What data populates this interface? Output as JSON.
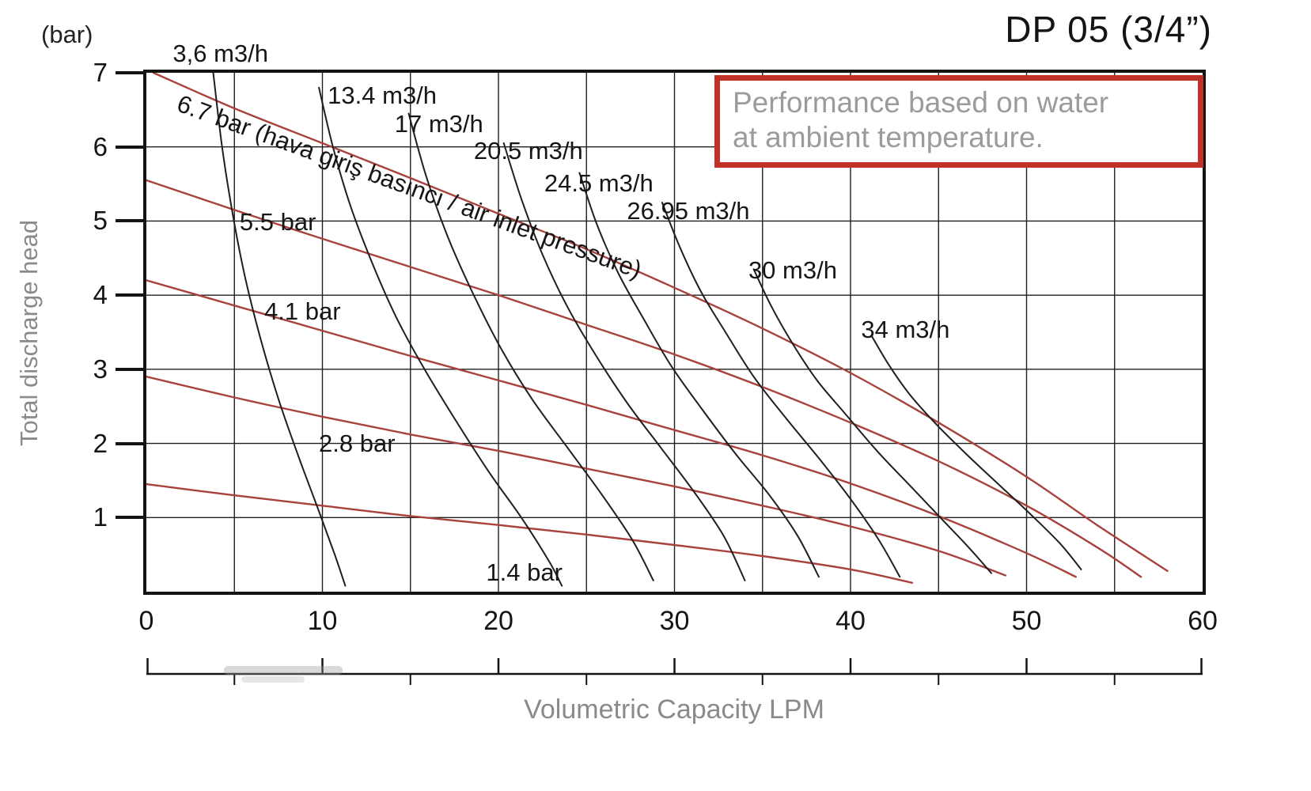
{
  "title": "DP 05 (3/4”)",
  "note": {
    "line1": "Performance based on water",
    "line2": "at ambient temperature."
  },
  "colors": {
    "pressure_curve": "#a8423c",
    "consumption_curve": "#1f1f1f",
    "note_border": "#c13128",
    "note_text": "#9b9b9b",
    "axis_text": "#141414",
    "muted_text": "#8a8a8a",
    "grid": "#1f1f1f"
  },
  "y_axis": {
    "unit_label": "(bar)",
    "axis_label": "Total discharge head",
    "ticks": [
      7,
      6,
      5,
      4,
      3,
      2,
      1
    ],
    "min": 0,
    "max": 7
  },
  "x_axis": {
    "axis_label": "Volumetric Capacity LPM",
    "ticks": [
      0,
      10,
      20,
      30,
      40,
      50,
      60
    ],
    "minor_step": 5,
    "min": 0,
    "max": 60
  },
  "chart_data": {
    "type": "line",
    "title": "DP 05 (3/4”) pump performance: total discharge head vs volumetric capacity",
    "xlabel": "Volumetric Capacity LPM",
    "ylabel": "Total discharge head (bar)",
    "xlim": [
      0,
      60
    ],
    "ylim": [
      0,
      7
    ],
    "grid": {
      "on": true,
      "x_step": 5,
      "y_step": 1
    },
    "legend": "labels drawn on curves",
    "series": [
      {
        "name": "6.7 bar (hava giriş basıncı / air inlet pressure)",
        "group": "pressure",
        "points": [
          [
            0.4,
            7.0
          ],
          [
            5,
            6.52
          ],
          [
            10,
            6.05
          ],
          [
            15,
            5.58
          ],
          [
            20,
            5.1
          ],
          [
            25,
            4.62
          ],
          [
            30,
            4.1
          ],
          [
            35,
            3.55
          ],
          [
            40,
            2.95
          ],
          [
            45,
            2.28
          ],
          [
            50,
            1.55
          ],
          [
            54,
            0.9
          ],
          [
            58,
            0.28
          ]
        ]
      },
      {
        "name": "5.5 bar",
        "group": "pressure",
        "points": [
          [
            0,
            5.55
          ],
          [
            5,
            5.15
          ],
          [
            10,
            4.76
          ],
          [
            15,
            4.38
          ],
          [
            20,
            4.0
          ],
          [
            25,
            3.6
          ],
          [
            30,
            3.2
          ],
          [
            35,
            2.76
          ],
          [
            40,
            2.28
          ],
          [
            45,
            1.76
          ],
          [
            50,
            1.16
          ],
          [
            54,
            0.6
          ],
          [
            56.5,
            0.2
          ]
        ]
      },
      {
        "name": "4.1 bar",
        "group": "pressure",
        "points": [
          [
            0,
            4.2
          ],
          [
            5,
            3.86
          ],
          [
            10,
            3.52
          ],
          [
            15,
            3.18
          ],
          [
            20,
            2.85
          ],
          [
            25,
            2.52
          ],
          [
            30,
            2.18
          ],
          [
            35,
            1.84
          ],
          [
            40,
            1.46
          ],
          [
            45,
            1.02
          ],
          [
            50,
            0.52
          ],
          [
            52.8,
            0.2
          ]
        ]
      },
      {
        "name": "2.8 bar",
        "group": "pressure",
        "points": [
          [
            0,
            2.9
          ],
          [
            5,
            2.62
          ],
          [
            10,
            2.36
          ],
          [
            15,
            2.12
          ],
          [
            20,
            1.9
          ],
          [
            25,
            1.66
          ],
          [
            30,
            1.42
          ],
          [
            35,
            1.16
          ],
          [
            40,
            0.88
          ],
          [
            45,
            0.55
          ],
          [
            48.8,
            0.22
          ]
        ]
      },
      {
        "name": "1.4 bar",
        "group": "pressure",
        "points": [
          [
            0,
            1.45
          ],
          [
            5,
            1.3
          ],
          [
            10,
            1.16
          ],
          [
            15,
            1.02
          ],
          [
            20,
            0.9
          ],
          [
            25,
            0.77
          ],
          [
            30,
            0.63
          ],
          [
            35,
            0.48
          ],
          [
            40,
            0.3
          ],
          [
            43.5,
            0.12
          ]
        ]
      },
      {
        "name": "3,6 m3/h",
        "group": "consumption",
        "points": [
          [
            3.8,
            7.0
          ],
          [
            4.3,
            6.0
          ],
          [
            4.9,
            5.1
          ],
          [
            5.6,
            4.25
          ],
          [
            6.5,
            3.4
          ],
          [
            7.5,
            2.6
          ],
          [
            8.6,
            1.85
          ],
          [
            9.7,
            1.15
          ],
          [
            10.7,
            0.5
          ],
          [
            11.3,
            0.08
          ]
        ]
      },
      {
        "name": "13.4 m3/h",
        "group": "consumption",
        "points": [
          [
            9.8,
            6.8
          ],
          [
            10.6,
            6.0
          ],
          [
            11.6,
            5.2
          ],
          [
            12.8,
            4.45
          ],
          [
            14.2,
            3.7
          ],
          [
            15.8,
            3.0
          ],
          [
            17.6,
            2.3
          ],
          [
            19.5,
            1.6
          ],
          [
            21.3,
            1.0
          ],
          [
            22.9,
            0.4
          ],
          [
            23.6,
            0.08
          ]
        ]
      },
      {
        "name": "17 m3/h",
        "group": "consumption",
        "points": [
          [
            14.9,
            6.45
          ],
          [
            15.9,
            5.6
          ],
          [
            17.1,
            4.8
          ],
          [
            18.5,
            4.05
          ],
          [
            20.1,
            3.3
          ],
          [
            21.9,
            2.6
          ],
          [
            23.9,
            1.95
          ],
          [
            25.9,
            1.3
          ],
          [
            27.6,
            0.7
          ],
          [
            28.8,
            0.15
          ]
        ]
      },
      {
        "name": "20.5 m3/h",
        "group": "consumption",
        "points": [
          [
            20.3,
            6.05
          ],
          [
            21.3,
            5.3
          ],
          [
            22.5,
            4.55
          ],
          [
            23.9,
            3.85
          ],
          [
            25.5,
            3.2
          ],
          [
            27.3,
            2.55
          ],
          [
            29.2,
            1.95
          ],
          [
            31.1,
            1.35
          ],
          [
            32.8,
            0.75
          ],
          [
            34.0,
            0.15
          ]
        ]
      },
      {
        "name": "24.5 m3/h",
        "group": "consumption",
        "points": [
          [
            24.6,
            5.65
          ],
          [
            25.6,
            4.95
          ],
          [
            26.8,
            4.3
          ],
          [
            28.2,
            3.7
          ],
          [
            29.8,
            3.05
          ],
          [
            31.6,
            2.45
          ],
          [
            33.5,
            1.85
          ],
          [
            35.4,
            1.3
          ],
          [
            37.0,
            0.75
          ],
          [
            38.2,
            0.2
          ]
        ]
      },
      {
        "name": "26.95 m3/h",
        "group": "consumption",
        "points": [
          [
            29.3,
            5.25
          ],
          [
            30.3,
            4.65
          ],
          [
            31.5,
            4.05
          ],
          [
            32.9,
            3.5
          ],
          [
            34.5,
            2.9
          ],
          [
            36.3,
            2.35
          ],
          [
            38.2,
            1.8
          ],
          [
            40.0,
            1.25
          ],
          [
            41.6,
            0.7
          ],
          [
            42.8,
            0.2
          ]
        ]
      },
      {
        "name": "30 m3/h",
        "group": "consumption",
        "points": [
          [
            34.5,
            4.35
          ],
          [
            35.5,
            3.85
          ],
          [
            36.7,
            3.35
          ],
          [
            38.1,
            2.85
          ],
          [
            39.7,
            2.4
          ],
          [
            41.5,
            1.9
          ],
          [
            43.3,
            1.45
          ],
          [
            45.1,
            1.0
          ],
          [
            46.7,
            0.6
          ],
          [
            48.0,
            0.25
          ]
        ]
      },
      {
        "name": "34 m3/h",
        "group": "consumption",
        "points": [
          [
            41.2,
            3.45
          ],
          [
            42.2,
            3.05
          ],
          [
            43.4,
            2.65
          ],
          [
            44.9,
            2.25
          ],
          [
            46.6,
            1.85
          ],
          [
            48.4,
            1.45
          ],
          [
            50.2,
            1.05
          ],
          [
            51.9,
            0.65
          ],
          [
            53.1,
            0.3
          ]
        ]
      }
    ],
    "labels": [
      {
        "text": "3,6 m3/h",
        "x": 1.5,
        "y": 7.25,
        "rotate": 0
      },
      {
        "text": "13.4 m3/h",
        "x": 10.3,
        "y": 6.68,
        "rotate": 0
      },
      {
        "text": "17 m3/h",
        "x": 14.1,
        "y": 6.3,
        "rotate": 0
      },
      {
        "text": "20.5 m3/h",
        "x": 18.6,
        "y": 5.93,
        "rotate": 0
      },
      {
        "text": "24.5 m3/h",
        "x": 22.6,
        "y": 5.5,
        "rotate": 0
      },
      {
        "text": "26.95 m3/h",
        "x": 27.3,
        "y": 5.12,
        "rotate": 0
      },
      {
        "text": "30 m3/h",
        "x": 34.2,
        "y": 4.32,
        "rotate": 0
      },
      {
        "text": "34 m3/h",
        "x": 40.6,
        "y": 3.52,
        "rotate": 0
      },
      {
        "text": "6.7 bar (hava giriş basıncı / air inlet pressure)",
        "x": 1.8,
        "y": 6.58,
        "rotate": 20
      },
      {
        "text": "5.5 bar",
        "x": 5.3,
        "y": 4.97,
        "rotate": 0
      },
      {
        "text": "4.1 bar",
        "x": 6.7,
        "y": 3.77,
        "rotate": 0
      },
      {
        "text": "2.8 bar",
        "x": 9.8,
        "y": 1.98,
        "rotate": 0
      },
      {
        "text": "1.4 bar",
        "x": 19.3,
        "y": 0.25,
        "rotate": 0
      }
    ]
  }
}
